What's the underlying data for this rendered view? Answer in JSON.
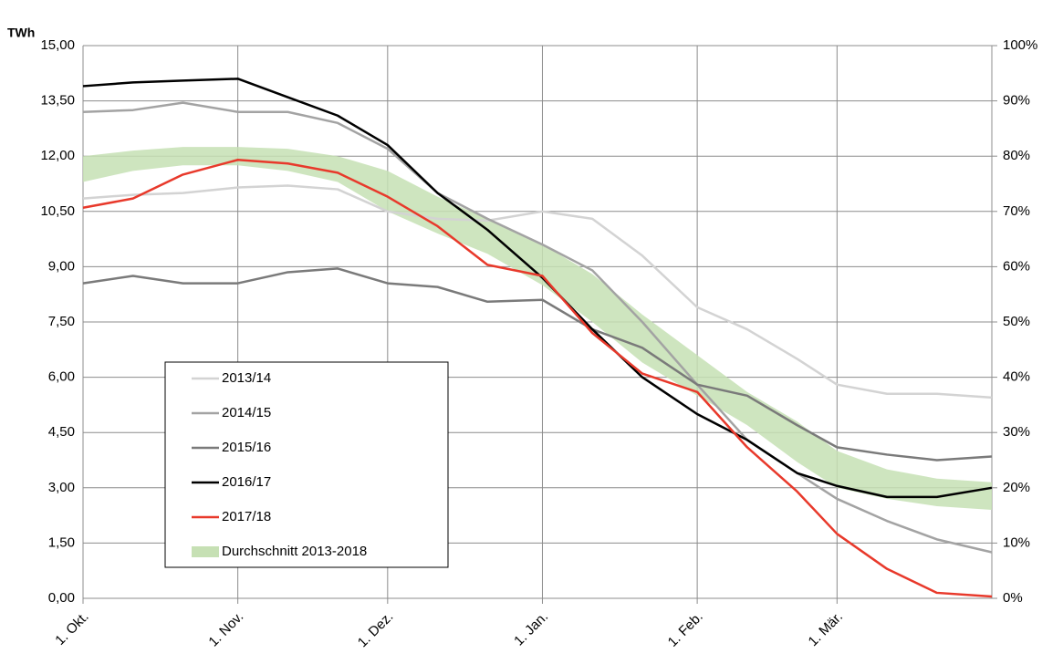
{
  "chart_data": {
    "type": "line",
    "y_label": "TWh",
    "x": [
      0,
      10,
      20,
      31,
      41,
      51,
      61,
      71,
      81,
      92,
      102,
      112,
      123,
      133,
      143,
      151,
      161,
      171,
      182
    ],
    "xlim": [
      0,
      182
    ],
    "xticks": [
      {
        "value": 0,
        "label": "1. Okt."
      },
      {
        "value": 31,
        "label": "1. Nov."
      },
      {
        "value": 61,
        "label": "1. Dez."
      },
      {
        "value": 92,
        "label": "1. Jan."
      },
      {
        "value": 123,
        "label": "1. Feb."
      },
      {
        "value": 151,
        "label": "1. Mär."
      }
    ],
    "ylim": [
      0,
      15
    ],
    "yticks": [
      {
        "value": 0,
        "label": "0,00"
      },
      {
        "value": 1.5,
        "label": "1,50"
      },
      {
        "value": 3,
        "label": "3,00"
      },
      {
        "value": 4.5,
        "label": "4,50"
      },
      {
        "value": 6,
        "label": "6,00"
      },
      {
        "value": 7.5,
        "label": "7,50"
      },
      {
        "value": 9,
        "label": "9,00"
      },
      {
        "value": 10.5,
        "label": "10,50"
      },
      {
        "value": 12,
        "label": "12,00"
      },
      {
        "value": 13.5,
        "label": "13,50"
      },
      {
        "value": 15,
        "label": "15,00"
      }
    ],
    "y2lim": [
      0,
      100
    ],
    "y2ticks": [
      {
        "value": 0,
        "label": "0%"
      },
      {
        "value": 10,
        "label": "10%"
      },
      {
        "value": 20,
        "label": "20%"
      },
      {
        "value": 30,
        "label": "30%"
      },
      {
        "value": 40,
        "label": "40%"
      },
      {
        "value": 50,
        "label": "50%"
      },
      {
        "value": 60,
        "label": "60%"
      },
      {
        "value": 70,
        "label": "70%"
      },
      {
        "value": 80,
        "label": "80%"
      },
      {
        "value": 90,
        "label": "90%"
      },
      {
        "value": 100,
        "label": "100%"
      }
    ],
    "grid": true,
    "band": {
      "name": "Durchschnitt 2013-2018",
      "color": "#c6e0b4",
      "lower": [
        11.3,
        11.6,
        11.75,
        11.75,
        11.6,
        11.3,
        10.5,
        9.9,
        9.35,
        8.5,
        7.5,
        6.4,
        5.5,
        4.7,
        3.7,
        3.0,
        2.7,
        2.5,
        2.4
      ],
      "upper": [
        12.0,
        12.15,
        12.25,
        12.25,
        12.2,
        12.0,
        11.6,
        10.9,
        10.3,
        9.6,
        8.8,
        7.7,
        6.6,
        5.6,
        4.8,
        4.0,
        3.5,
        3.25,
        3.15
      ]
    },
    "series": [
      {
        "name": "2013/14",
        "color": "#d3d3d3",
        "values": [
          10.85,
          10.95,
          11.0,
          11.15,
          11.2,
          11.1,
          10.5,
          10.3,
          10.25,
          10.5,
          10.3,
          9.3,
          7.9,
          7.3,
          6.5,
          5.8,
          5.55,
          5.55,
          5.45
        ]
      },
      {
        "name": "2014/15",
        "color": "#a3a3a3",
        "values": [
          13.2,
          13.25,
          13.45,
          13.2,
          13.2,
          12.9,
          12.2,
          11.0,
          10.3,
          9.6,
          8.9,
          7.5,
          5.8,
          4.3,
          3.4,
          2.7,
          2.1,
          1.6,
          1.25
        ]
      },
      {
        "name": "2015/16",
        "color": "#7a7a7a",
        "values": [
          8.55,
          8.75,
          8.55,
          8.55,
          8.85,
          8.95,
          8.55,
          8.45,
          8.05,
          8.1,
          7.3,
          6.8,
          5.8,
          5.5,
          4.7,
          4.1,
          3.9,
          3.75,
          3.85
        ]
      },
      {
        "name": "2016/17",
        "color": "#000000",
        "values": [
          13.9,
          14.0,
          14.05,
          14.1,
          13.6,
          13.1,
          12.3,
          11.0,
          10.0,
          8.7,
          7.3,
          6.0,
          5.0,
          4.3,
          3.4,
          3.05,
          2.75,
          2.75,
          3.0
        ]
      },
      {
        "name": "2017/18",
        "color": "#e8392b",
        "values": [
          10.6,
          10.85,
          11.5,
          11.9,
          11.8,
          11.55,
          10.9,
          10.1,
          9.05,
          8.75,
          7.2,
          6.1,
          5.6,
          4.1,
          2.9,
          1.75,
          0.8,
          0.15,
          0.05
        ]
      }
    ]
  }
}
